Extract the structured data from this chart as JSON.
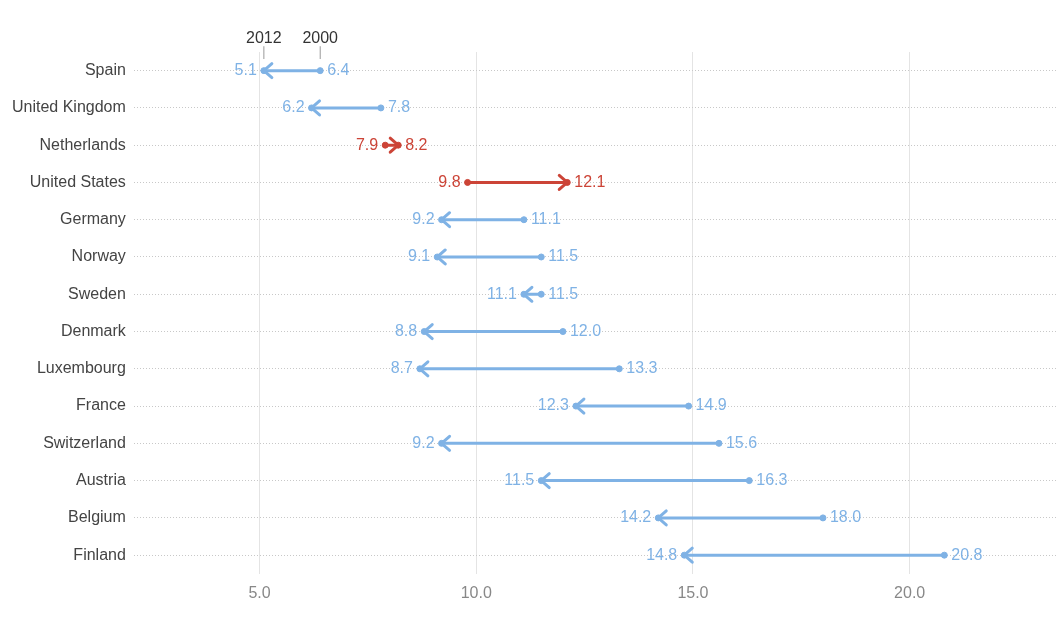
{
  "chart_data": {
    "type": "scatter",
    "orientation": "horizontal",
    "marker": "circle",
    "legend": false,
    "grid": true,
    "categories": [
      "Spain",
      "United Kingdom",
      "Netherlands",
      "United States",
      "Germany",
      "Norway",
      "Sweden",
      "Denmark",
      "Luxembourg",
      "France",
      "Switzerland",
      "Austria",
      "Belgium",
      "Finland"
    ],
    "series": [
      {
        "name": "2000",
        "values": [
          6.4,
          7.8,
          7.9,
          9.8,
          11.1,
          11.5,
          11.5,
          12.0,
          13.3,
          14.9,
          15.6,
          16.3,
          18.0,
          20.8
        ],
        "value_labels": [
          "6.4",
          "7.8",
          "7.9",
          "9.8",
          "11.1",
          "11.5",
          "11.5",
          "12.0",
          "13.3",
          "14.9",
          "15.6",
          "16.3",
          "18.0",
          "20.8"
        ],
        "colors": [
          "#7fb2e5",
          "#7fb2e5",
          "#cc4437",
          "#cc4437",
          "#7fb2e5",
          "#7fb2e5",
          "#7fb2e5",
          "#7fb2e5",
          "#7fb2e5",
          "#7fb2e5",
          "#7fb2e5",
          "#7fb2e5",
          "#7fb2e5",
          "#7fb2e5"
        ]
      },
      {
        "name": "2012",
        "values": [
          5.1,
          6.2,
          8.2,
          12.1,
          9.2,
          9.1,
          11.1,
          8.8,
          8.7,
          12.3,
          9.2,
          11.5,
          14.2,
          14.8
        ],
        "value_labels": [
          "5.1",
          "6.2",
          "8.2",
          "12.1",
          "9.2",
          "9.1",
          "11.1",
          "8.8",
          "8.7",
          "12.3",
          "9.2",
          "11.5",
          "14.2",
          "14.8"
        ],
        "colors": [
          "#7fb2e5",
          "#7fb2e5",
          "#cc4437",
          "#cc4437",
          "#7fb2e5",
          "#7fb2e5",
          "#7fb2e5",
          "#7fb2e5",
          "#7fb2e5",
          "#7fb2e5",
          "#7fb2e5",
          "#7fb2e5",
          "#7fb2e5",
          "#7fb2e5"
        ]
      }
    ],
    "xlim": [
      2.1,
      23.4
    ],
    "xticks": [
      {
        "value": 5,
        "label": "5.0"
      },
      {
        "value": 10,
        "label": "10.0"
      },
      {
        "value": 15,
        "label": "15.0"
      },
      {
        "value": 20,
        "label": "20.0"
      }
    ]
  }
}
